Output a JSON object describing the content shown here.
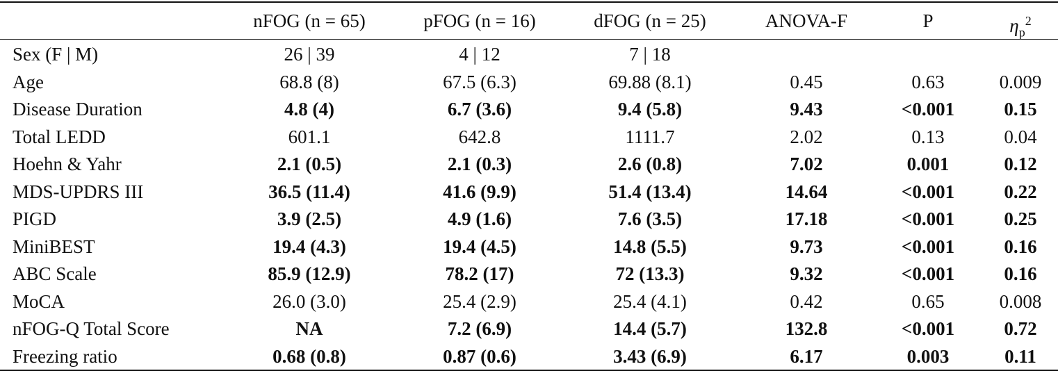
{
  "table": {
    "header": {
      "columns": [
        "nFOG (n = 65)",
        "pFOG (n = 16)",
        "dFOG (n = 25)",
        "ANOVA-F",
        "P"
      ],
      "effect": {
        "symbol": "η",
        "sub": "p",
        "sup": "2"
      }
    },
    "rows": [
      {
        "label": "Sex (F | M)",
        "cells": [
          "26 | 39",
          "4 | 12",
          "7 | 18",
          null,
          null,
          null
        ],
        "bold": false
      },
      {
        "label": "Age",
        "cells": [
          "68.8 (8)",
          "67.5 (6.3)",
          "69.88 (8.1)",
          "0.45",
          "0.63",
          "0.009"
        ],
        "bold": false
      },
      {
        "label": "Disease Duration",
        "cells": [
          "4.8 (4)",
          "6.7 (3.6)",
          "9.4 (5.8)",
          "9.43",
          "<0.001",
          "0.15"
        ],
        "bold": true
      },
      {
        "label": "Total LEDD",
        "cells": [
          "601.1",
          "642.8",
          "1111.7",
          "2.02",
          "0.13",
          "0.04"
        ],
        "bold": false
      },
      {
        "label": "Hoehn & Yahr",
        "cells": [
          "2.1 (0.5)",
          "2.1 (0.3)",
          "2.6 (0.8)",
          "7.02",
          "0.001",
          "0.12"
        ],
        "bold": true
      },
      {
        "label": "MDS-UPDRS III",
        "cells": [
          "36.5 (11.4)",
          "41.6 (9.9)",
          "51.4 (13.4)",
          "14.64",
          "<0.001",
          "0.22"
        ],
        "bold": true
      },
      {
        "label": "PIGD",
        "cells": [
          "3.9 (2.5)",
          "4.9 (1.6)",
          "7.6 (3.5)",
          "17.18",
          "<0.001",
          "0.25"
        ],
        "bold": true
      },
      {
        "label": "MiniBEST",
        "cells": [
          "19.4 (4.3)",
          "19.4 (4.5)",
          "14.8 (5.5)",
          "9.73",
          "<0.001",
          "0.16"
        ],
        "bold": true
      },
      {
        "label": "ABC Scale",
        "cells": [
          "85.9 (12.9)",
          "78.2 (17)",
          "72 (13.3)",
          "9.32",
          "<0.001",
          "0.16"
        ],
        "bold": true
      },
      {
        "label": "MoCA",
        "cells": [
          "26.0 (3.0)",
          "25.4 (2.9)",
          "25.4 (4.1)",
          "0.42",
          "0.65",
          "0.008"
        ],
        "bold": false
      },
      {
        "label": "nFOG-Q Total Score",
        "cells": [
          "NA",
          "7.2 (6.9)",
          "14.4 (5.7)",
          "132.8",
          "<0.001",
          "0.72"
        ],
        "bold": true
      },
      {
        "label": "Freezing ratio",
        "cells": [
          "0.68 (0.8)",
          "0.87 (0.6)",
          "3.43 (6.9)",
          "6.17",
          "0.003",
          "0.11"
        ],
        "bold": true
      }
    ]
  }
}
